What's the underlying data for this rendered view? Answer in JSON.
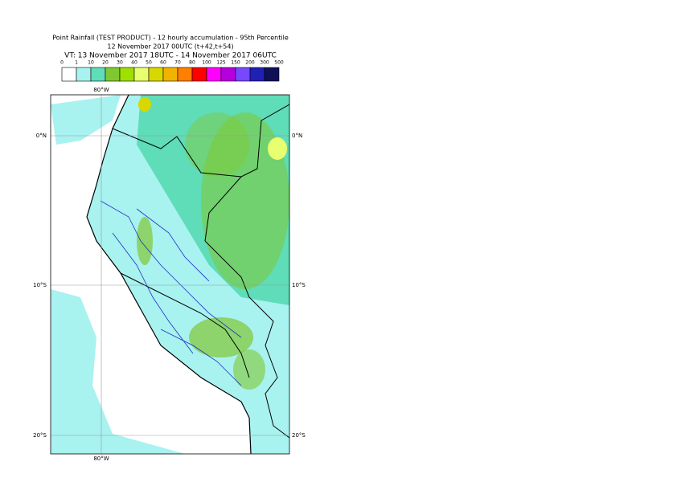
{
  "header": {
    "title": "Point Rainfall (TEST PRODUCT) - 12 hourly accumulation - 95th Percentile",
    "base_time": "12 November 2017 00UTC (t+42,t+54)",
    "valid_time": "VT: 13 November 2017 18UTC - 14 November 2017 06UTC"
  },
  "legend": {
    "labels": [
      "0",
      "1",
      "10",
      "20",
      "30",
      "40",
      "50",
      "60",
      "70",
      "80",
      "100",
      "125",
      "150",
      "200",
      "300",
      "500"
    ],
    "colors": [
      "#ffffff",
      "#a8f2f0",
      "#5fdcb8",
      "#80c832",
      "#9ee000",
      "#e8ff70",
      "#d8d800",
      "#f0b400",
      "#ff8000",
      "#ff0000",
      "#ff00ff",
      "#b400dc",
      "#7848ff",
      "#2020b4",
      "#101058"
    ]
  },
  "map": {
    "lon_top": "80°W",
    "lon_bottom": "80°W",
    "lat_0_left": "0°N",
    "lat_0_right": "0°N",
    "lat_10_left": "10°S",
    "lat_10_right": "10°S",
    "lat_20_left": "20°S",
    "lat_20_right": "20°S"
  }
}
